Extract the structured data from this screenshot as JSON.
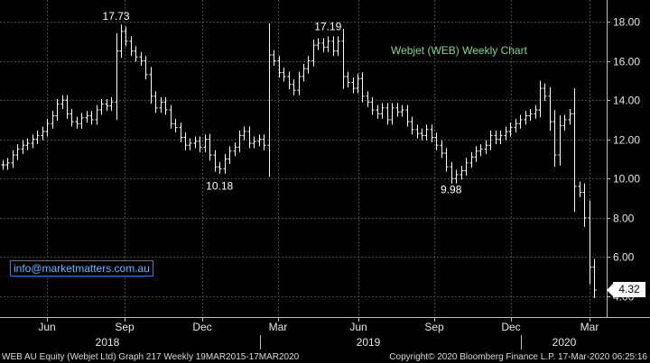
{
  "chart_data": {
    "type": "ohlc",
    "title": "Webjet (WEB) Weekly Chart",
    "y_ticks": [
      "18.00",
      "16.00",
      "14.00",
      "12.00",
      "10.00",
      "8.00",
      "6.00",
      "4.00"
    ],
    "ylim": [
      3.0,
      19.0
    ],
    "x_ticks": [
      "Jun",
      "Sep",
      "Dec",
      "Mar",
      "Jun",
      "Sep",
      "Dec",
      "Mar"
    ],
    "years": [
      "2018",
      "2019",
      "2020"
    ],
    "grid": true,
    "closes": [
      10.7,
      10.8,
      11.2,
      11.5,
      11.7,
      11.8,
      12.0,
      12.2,
      12.4,
      12.8,
      13.2,
      13.8,
      14.0,
      13.3,
      12.9,
      12.8,
      13.1,
      13.2,
      13.0,
      13.5,
      13.8,
      13.7,
      13.9,
      16.5,
      17.5,
      17.0,
      16.5,
      16.2,
      16.0,
      15.3,
      14.2,
      13.6,
      13.9,
      13.5,
      12.8,
      12.6,
      12.1,
      11.7,
      11.8,
      11.9,
      11.6,
      12.0,
      11.2,
      10.6,
      10.5,
      11.0,
      11.4,
      11.6,
      12.2,
      12.4,
      11.8,
      11.9,
      12.0,
      11.7,
      16.3,
      16.0,
      15.4,
      15.2,
      14.8,
      14.5,
      15.2,
      15.6,
      16.0,
      16.8,
      16.9,
      16.7,
      17.0,
      16.5,
      17.0,
      15.2,
      14.9,
      14.6,
      15.1,
      14.2,
      13.9,
      13.5,
      13.3,
      13.6,
      13.0,
      13.6,
      13.4,
      13.5,
      12.9,
      12.5,
      12.3,
      12.2,
      12.5,
      12.1,
      11.7,
      11.3,
      10.6,
      10.0,
      10.2,
      10.4,
      10.8,
      11.1,
      11.4,
      11.5,
      11.7,
      12.2,
      12.0,
      12.2,
      12.4,
      12.6,
      12.8,
      13.0,
      13.2,
      13.3,
      13.5,
      14.6,
      14.2,
      12.9,
      11.2,
      12.7,
      13.0,
      13.3,
      9.6,
      9.3,
      8.0,
      5.5,
      4.32
    ],
    "annotations": [
      {
        "label": "17.73",
        "value": 17.73,
        "week": 23
      },
      {
        "label": "10.18",
        "value": 10.18,
        "week": 44
      },
      {
        "label": "17.19",
        "value": 17.19,
        "week": 66
      },
      {
        "label": "9.98",
        "value": 9.98,
        "week": 91
      }
    ],
    "last_value": "4.32"
  },
  "watermark": "info@marketmatters.com.au",
  "footer": {
    "left": "WEB AU Equity (Webjet Ltd) Graph 217  Weekly 19MAR2015-17MAR2020",
    "right": "Copyright© 2020 Bloomberg Finance L.P.    17-Mar-2020 06:25:16"
  },
  "colors": {
    "background": "#000000",
    "grid": "#4a4a4a",
    "bars": "#ffffff",
    "title": "#7fd98a",
    "watermark": "#6fb6ff"
  }
}
